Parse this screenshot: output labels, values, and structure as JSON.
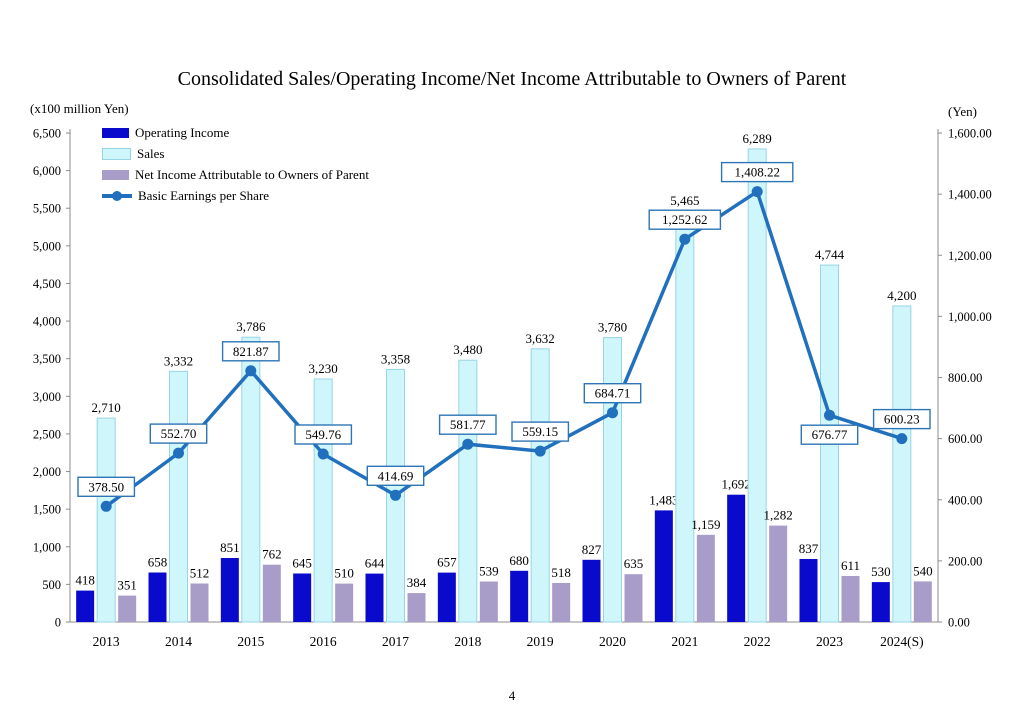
{
  "page": {
    "page_number": "4"
  },
  "chart_data": {
    "type": "bar+line",
    "title": "Consolidated Sales/Operating Income/Net Income Attributable to Owners of Parent",
    "categories": [
      "2013",
      "2014",
      "2015",
      "2016",
      "2017",
      "2018",
      "2019",
      "2020",
      "2021",
      "2022",
      "2023",
      "2024(S)"
    ],
    "left_axis": {
      "label": "(x100 million Yen)",
      "min": 0,
      "max": 6500,
      "step": 500
    },
    "right_axis": {
      "label": "(Yen)",
      "min": 0,
      "max": 1600,
      "step": 200
    },
    "legend_position": "top-left-inside",
    "grid": false,
    "series": [
      {
        "name": "Operating Income",
        "type": "bar",
        "axis": "left",
        "color": "#0A0ACC",
        "values": [
          418,
          658,
          851,
          645,
          644,
          657,
          680,
          827,
          1483,
          1692,
          837,
          530
        ],
        "labels": [
          "418",
          "658",
          "851",
          "645",
          "644",
          "657",
          "680",
          "827",
          "1,483",
          "1,692",
          "837",
          "530"
        ]
      },
      {
        "name": "Sales",
        "type": "bar",
        "axis": "left",
        "color": "#CFF6FB",
        "border": "#97D5E6",
        "values": [
          2710,
          3332,
          3786,
          3230,
          3358,
          3480,
          3632,
          3780,
          5465,
          6289,
          4744,
          4200
        ],
        "labels": [
          "2,710",
          "3,332",
          "3,786",
          "3,230",
          "3,358",
          "3,480",
          "3,632",
          "3,780",
          "5,465",
          "6,289",
          "4,744",
          "4,200"
        ]
      },
      {
        "name": "Net Income Attributable to Owners of Parent",
        "type": "bar",
        "axis": "left",
        "color": "#A79DC8",
        "values": [
          351,
          512,
          762,
          510,
          384,
          539,
          518,
          635,
          1159,
          1282,
          611,
          540
        ],
        "labels": [
          "351",
          "512",
          "762",
          "510",
          "384",
          "539",
          "518",
          "635",
          "1,159",
          "1,282",
          "611",
          "540"
        ]
      },
      {
        "name": "Basic Earnings per Share",
        "type": "line",
        "axis": "right",
        "color": "#2170BD",
        "label_box_border": "#2E75B6",
        "values": [
          378.5,
          552.7,
          821.87,
          549.76,
          414.69,
          581.77,
          559.15,
          684.71,
          1252.62,
          1408.22,
          676.77,
          600.23
        ],
        "labels": [
          "378.50",
          "552.70",
          "821.87",
          "549.76",
          "414.69",
          "581.77",
          "559.15",
          "684.71",
          "1,252.62",
          "1,408.22",
          "676.77",
          "600.23"
        ],
        "label_pos": [
          "above",
          "above",
          "above",
          "above",
          "above",
          "above",
          "above",
          "above",
          "above",
          "above",
          "below",
          "above"
        ]
      }
    ]
  }
}
